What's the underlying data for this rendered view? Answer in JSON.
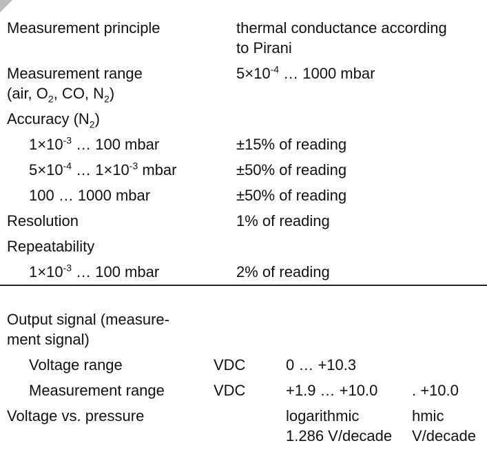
{
  "sections": [
    {
      "rows": [
        {
          "cells": [
            [
              [
                "Measurement principle"
              ]
            ],
            [
              [
                "thermal conductance according"
              ],
              [
                "to Pirani"
              ]
            ]
          ]
        },
        {
          "cells": [
            [
              [
                "Measurement range"
              ],
              [
                "(air, O",
                {
                  "sub": "2"
                },
                ", CO, N",
                {
                  "sub": "2"
                },
                ")"
              ]
            ],
            [
              [
                "5×10",
                {
                  "sup": "-4"
                },
                " … 1000 mbar"
              ]
            ]
          ]
        },
        {
          "cells": [
            [
              [
                "Accuracy (N",
                {
                  "sub": "2"
                },
                ")"
              ]
            ]
          ]
        },
        {
          "indent": true,
          "cells": [
            [
              [
                "1×10",
                {
                  "sup": "-3"
                },
                " … 100 mbar"
              ]
            ],
            [
              [
                "±15% of reading"
              ]
            ]
          ]
        },
        {
          "indent": true,
          "cells": [
            [
              [
                "5×10",
                {
                  "sup": "-4"
                },
                " … 1×10",
                {
                  "sup": "-3"
                },
                " mbar"
              ]
            ],
            [
              [
                "±50% of reading"
              ]
            ]
          ]
        },
        {
          "indent": true,
          "cells": [
            [
              [
                "100 … 1000 mbar"
              ]
            ],
            [
              [
                "±50% of reading"
              ]
            ]
          ]
        },
        {
          "cells": [
            [
              [
                "Resolution"
              ]
            ],
            [
              [
                "1% of reading"
              ]
            ]
          ]
        },
        {
          "cells": [
            [
              [
                "Repeatability"
              ]
            ]
          ]
        },
        {
          "indent": true,
          "cells": [
            [
              [
                "1×10",
                {
                  "sup": "-3"
                },
                " … 100 mbar"
              ]
            ],
            [
              [
                "2% of reading"
              ]
            ]
          ]
        }
      ]
    },
    {
      "rows": [
        {
          "cells": [
            [
              [
                "Output signal (measure-"
              ],
              [
                "ment signal)"
              ]
            ]
          ]
        },
        {
          "indent": true,
          "cells": [
            [
              [
                "Voltage range"
              ]
            ],
            [
              [
                "VDC"
              ]
            ],
            [
              [
                "0 … +10.3"
              ]
            ]
          ]
        },
        {
          "indent": true,
          "cells": [
            [
              [
                "Measurement range"
              ]
            ],
            [
              [
                "VDC"
              ]
            ],
            [
              [
                "+1.9 … +10.0"
              ]
            ],
            [
              [
                ". +10.0"
              ]
            ]
          ]
        },
        {
          "cells": [
            [
              [
                "Voltage vs. pressure"
              ]
            ],
            null,
            [
              [
                "logarithmic"
              ],
              [
                "1.286 V/decade"
              ]
            ],
            [
              [
                "hmic"
              ],
              [
                "V/decade"
              ]
            ]
          ]
        }
      ]
    }
  ]
}
